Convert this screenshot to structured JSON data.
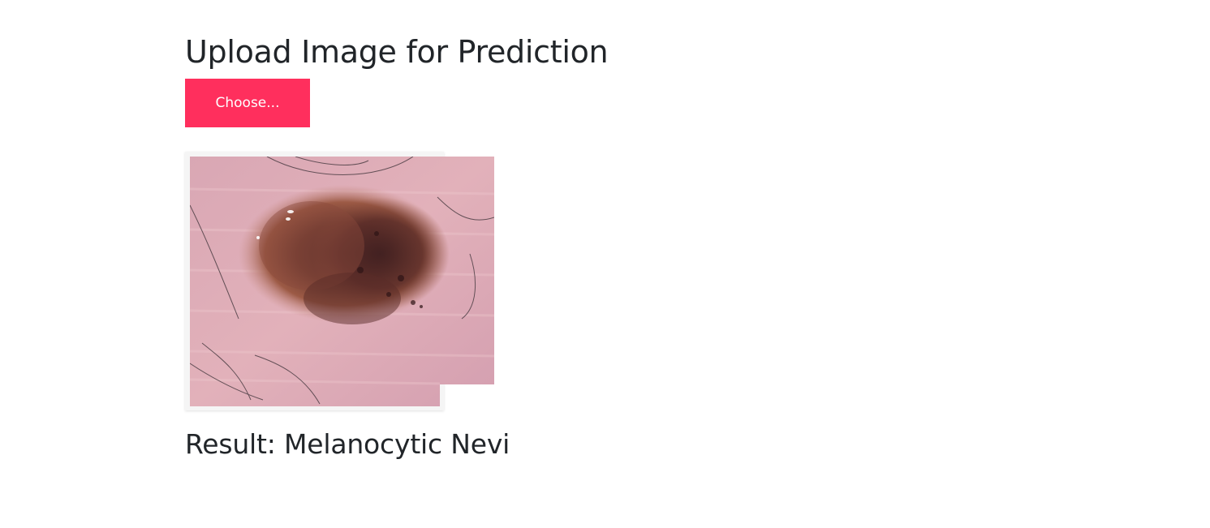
{
  "upload": {
    "title": "Upload Image for Prediction",
    "choose_label": "Choose...",
    "button_color": "#ff2f5d"
  },
  "preview": {
    "subject": "dermoscopic skin lesion image"
  },
  "result": {
    "text": "Result: Melanocytic Nevi"
  }
}
